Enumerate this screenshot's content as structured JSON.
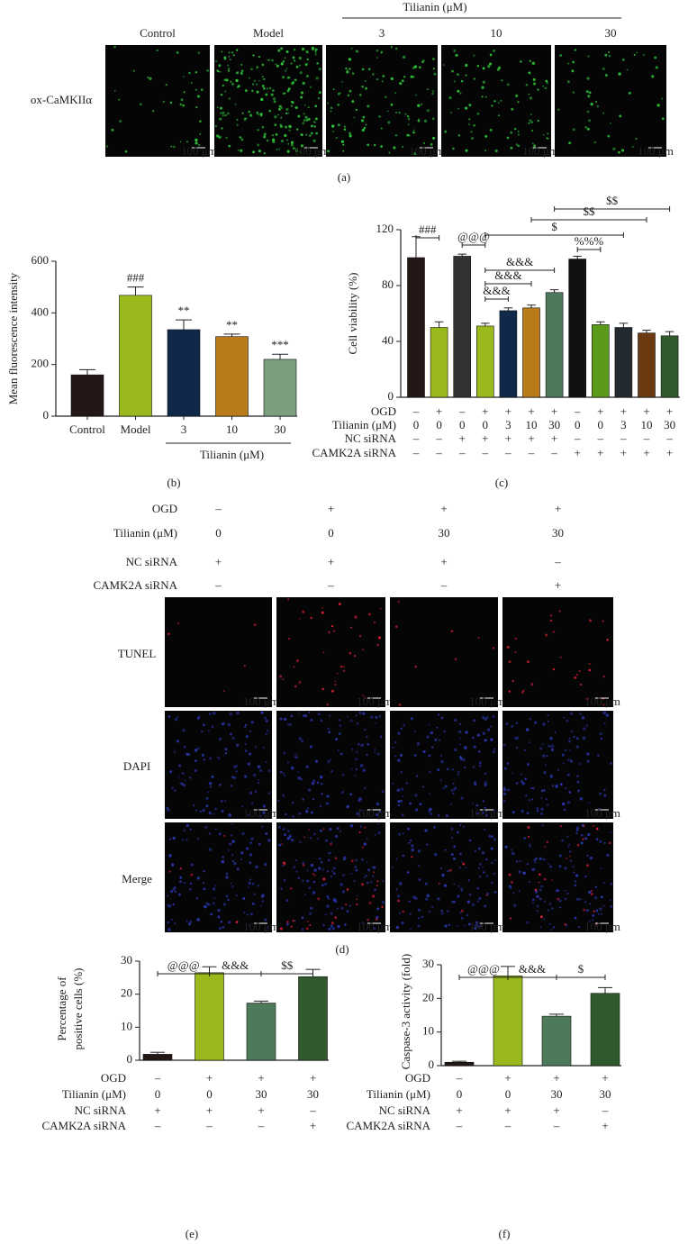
{
  "panel_a": {
    "group_label": "Tilianin (μM)",
    "columns": [
      "Control",
      "Model",
      "3",
      "10",
      "30"
    ],
    "row_label": "ox-CaMKIIα",
    "scale_bar": "100 μm",
    "caption": "(a)"
  },
  "panel_d": {
    "conditions": [
      {
        "label": "OGD",
        "values": [
          "–",
          "+",
          "+",
          "+"
        ]
      },
      {
        "label": "Tilianin (μM)",
        "values": [
          "0",
          "0",
          "30",
          "30"
        ]
      },
      {
        "label": "NC siRNA",
        "values": [
          "+",
          "+",
          "+",
          "–"
        ]
      },
      {
        "label": "CAMK2A siRNA",
        "values": [
          "–",
          "–",
          "–",
          "+"
        ]
      }
    ],
    "rows": [
      "TUNEL",
      "DAPI",
      "Merge"
    ],
    "scale_bar": "100 μm",
    "caption": "(d)"
  },
  "chart_data": [
    {
      "type": "bar",
      "y_label": "Mean fluorescence intensity",
      "categories": [
        "Control",
        "Model",
        "3",
        "10",
        "30"
      ],
      "values": [
        160,
        468,
        335,
        308,
        220
      ],
      "errors": [
        20,
        32,
        38,
        10,
        20
      ],
      "significance": [
        null,
        "###",
        "**",
        "**",
        "***"
      ],
      "colors": [
        "#231815",
        "#9ab91c",
        "#10294a",
        "#b97a1a",
        "#7a9e7e"
      ],
      "group_label": "Tilianin (μM)",
      "ylim": [
        0,
        600
      ],
      "yticks": [
        0,
        200,
        400,
        600
      ],
      "caption": "(b)"
    },
    {
      "type": "bar",
      "y_label": "Cell viability (%)",
      "values": [
        100,
        50,
        101,
        51,
        62,
        64,
        75,
        99,
        52,
        50,
        46,
        44
      ],
      "errors": [
        15,
        4,
        1.5,
        2,
        2,
        2,
        2,
        2,
        2,
        3,
        2,
        3
      ],
      "colors": [
        "#231815",
        "#9ab91c",
        "#333333",
        "#9ab91c",
        "#10294a",
        "#b97a1a",
        "#4d7a5a",
        "#111111",
        "#5a9a1a",
        "#222a30",
        "#6b3a10",
        "#2e5a2e"
      ],
      "conditions": [
        {
          "label": "OGD",
          "values": [
            "–",
            "+",
            "–",
            "+",
            "+",
            "+",
            "+",
            "–",
            "+",
            "+",
            "+",
            "+"
          ]
        },
        {
          "label": "Tilianin (μM)",
          "values": [
            "0",
            "0",
            "0",
            "0",
            "3",
            "10",
            "30",
            "0",
            "0",
            "3",
            "10",
            "30"
          ]
        },
        {
          "label": "NC siRNA",
          "values": [
            "–",
            "–",
            "+",
            "+",
            "+",
            "+",
            "+",
            "–",
            "–",
            "–",
            "–",
            "–"
          ]
        },
        {
          "label": "CAMK2A siRNA",
          "values": [
            "–",
            "–",
            "–",
            "–",
            "–",
            "–",
            "–",
            "+",
            "+",
            "+",
            "+",
            "+"
          ]
        }
      ],
      "comparisons": [
        {
          "from": 0,
          "to": 1,
          "label": "###"
        },
        {
          "from": 2,
          "to": 3,
          "label": "@@@"
        },
        {
          "from": 3,
          "to": 4,
          "label": "&&&"
        },
        {
          "from": 3,
          "to": 5,
          "label": "&&&"
        },
        {
          "from": 3,
          "to": 6,
          "label": "&&&"
        },
        {
          "from": 7,
          "to": 8,
          "label": "%%%"
        },
        {
          "from": 3,
          "to": 9,
          "label": "$"
        },
        {
          "from": 5,
          "to": 10,
          "label": "$$"
        },
        {
          "from": 6,
          "to": 11,
          "label": "$$"
        }
      ],
      "ylim": [
        0,
        120
      ],
      "yticks": [
        0,
        40,
        80,
        120
      ],
      "caption": "(c)"
    },
    {
      "type": "bar",
      "y_label": [
        "Percentage of",
        "positive cells (%)"
      ],
      "values": [
        1.8,
        26.5,
        17.3,
        25.3
      ],
      "errors": [
        0.6,
        1.8,
        0.6,
        2.2
      ],
      "colors": [
        "#231815",
        "#9ab91c",
        "#4d7a5a",
        "#2e5a2e"
      ],
      "conditions": [
        {
          "label": "OGD",
          "values": [
            "–",
            "+",
            "+",
            "+"
          ]
        },
        {
          "label": "Tilianin (μM)",
          "values": [
            "0",
            "0",
            "30",
            "30"
          ]
        },
        {
          "label": "NC siRNA",
          "values": [
            "+",
            "+",
            "+",
            "–"
          ]
        },
        {
          "label": "CAMK2A siRNA",
          "values": [
            "–",
            "–",
            "–",
            "+"
          ]
        }
      ],
      "comparisons": [
        {
          "from": 0,
          "to": 1,
          "label": "@@@"
        },
        {
          "from": 1,
          "to": 2,
          "label": "&&&"
        },
        {
          "from": 2,
          "to": 3,
          "label": "$$"
        }
      ],
      "ylim": [
        0,
        30
      ],
      "yticks": [
        0,
        10,
        20,
        30
      ],
      "caption": "(e)"
    },
    {
      "type": "bar",
      "y_label": "Caspase-3 activity (fold)",
      "values": [
        1.0,
        26.7,
        14.7,
        21.5
      ],
      "errors": [
        0.3,
        2.8,
        0.6,
        1.7
      ],
      "colors": [
        "#231815",
        "#9ab91c",
        "#4d7a5a",
        "#2e5a2e"
      ],
      "conditions": [
        {
          "label": "OGD",
          "values": [
            "–",
            "+",
            "+",
            "+"
          ]
        },
        {
          "label": "Tilianin (μM)",
          "values": [
            "0",
            "0",
            "30",
            "30"
          ]
        },
        {
          "label": "NC siRNA",
          "values": [
            "+",
            "+",
            "+",
            "–"
          ]
        },
        {
          "label": "CAMK2A siRNA",
          "values": [
            "–",
            "–",
            "–",
            "+"
          ]
        }
      ],
      "comparisons": [
        {
          "from": 0,
          "to": 1,
          "label": "@@@"
        },
        {
          "from": 1,
          "to": 2,
          "label": "&&&"
        },
        {
          "from": 2,
          "to": 3,
          "label": "$"
        }
      ],
      "ylim": [
        0,
        30
      ],
      "yticks": [
        0,
        10,
        20,
        30
      ],
      "caption": "(f)"
    }
  ]
}
